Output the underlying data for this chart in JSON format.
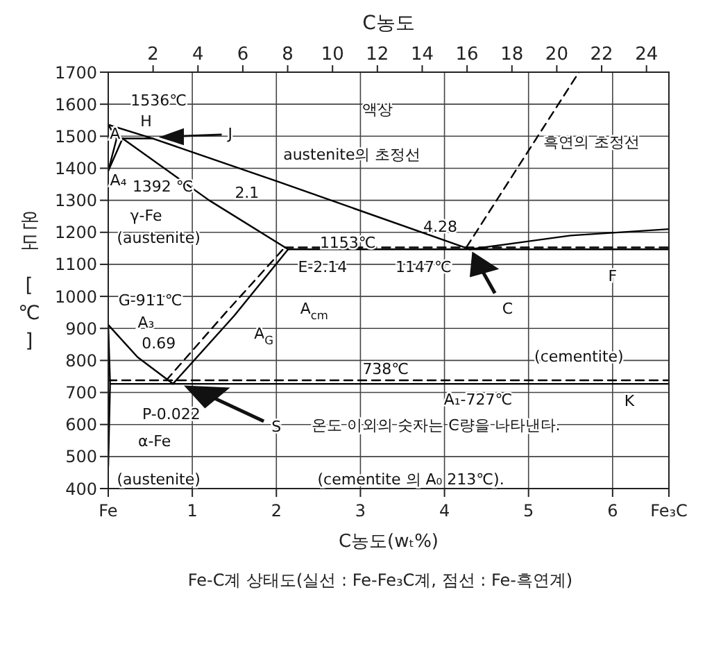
{
  "chart_data": {
    "type": "line",
    "x2label": "C농도",
    "xlabel": "C농도(wₜ%)",
    "ylabel": "온도 [℃]",
    "xlim": [
      0,
      6.67
    ],
    "xticks": [
      {
        "value": 0,
        "label": "Fe"
      },
      1,
      2,
      3,
      4,
      5,
      6,
      {
        "value": 6.67,
        "label": "Fe₃C"
      }
    ],
    "x2lim": [
      0,
      25
    ],
    "x2ticks": [
      2,
      4,
      6,
      8,
      10,
      12,
      14,
      16,
      18,
      20,
      22,
      24
    ],
    "ylim": [
      400,
      1700
    ],
    "yticks": [
      400,
      500,
      600,
      700,
      800,
      900,
      1000,
      1100,
      1200,
      1300,
      1400,
      1500,
      1600,
      1700
    ],
    "grid": true,
    "series": [
      {
        "color": "#000000",
        "line_style": "solid",
        "x": [
          0,
          0.53,
          2.0,
          4.3
        ],
        "values": [
          1536,
          1493,
          1360,
          1147
        ]
      },
      {
        "color": "#000000",
        "line_style": "solid",
        "x": [
          0,
          0.1
        ],
        "values": [
          1536,
          1493
        ]
      },
      {
        "color": "#000000",
        "line_style": "solid",
        "x": [
          0.1,
          0.53
        ],
        "values": [
          1493,
          1493
        ]
      },
      {
        "color": "#000000",
        "line_style": "solid",
        "x": [
          0,
          0.1
        ],
        "values": [
          1392,
          1493
        ]
      },
      {
        "color": "#000000",
        "line_style": "solid",
        "x": [
          0,
          0.17
        ],
        "values": [
          1392,
          1493
        ]
      },
      {
        "color": "#000000",
        "line_style": "solid",
        "x": [
          0.17,
          1.2,
          2.14
        ],
        "values": [
          1493,
          1300,
          1147
        ]
      },
      {
        "color": "#000000",
        "line_style": "solid",
        "x": [
          2.14,
          6.67
        ],
        "values": [
          1147,
          1147
        ]
      },
      {
        "color": "#000000",
        "line_style": "solid",
        "x": [
          4.3,
          5.5,
          6.67
        ],
        "values": [
          1147,
          1190,
          1210
        ]
      },
      {
        "color": "#000000",
        "line_style": "dashed",
        "x": [
          4.26,
          5.6
        ],
        "values": [
          1153,
          1700
        ]
      },
      {
        "color": "#000000",
        "line_style": "dashed",
        "x": [
          2.1,
          6.67
        ],
        "values": [
          1153,
          1153
        ]
      },
      {
        "color": "#000000",
        "line_style": "solid",
        "x": [
          0,
          0.35,
          0.77
        ],
        "values": [
          911,
          810,
          727
        ]
      },
      {
        "color": "#000000",
        "line_style": "solid",
        "x": [
          0.77,
          1.5,
          2.14
        ],
        "values": [
          727,
          940,
          1147
        ]
      },
      {
        "color": "#000000",
        "line_style": "dashed",
        "x": [
          0.69,
          1.4,
          2.1
        ],
        "values": [
          738,
          950,
          1153
        ]
      },
      {
        "color": "#000000",
        "line_style": "solid",
        "x": [
          0.022,
          6.67
        ],
        "values": [
          727,
          727
        ]
      },
      {
        "color": "#000000",
        "line_style": "dashed",
        "x": [
          0,
          6.67
        ],
        "values": [
          738,
          738
        ]
      },
      {
        "color": "#000000",
        "line_style": "solid",
        "x": [
          0,
          0.022,
          0
        ],
        "values": [
          911,
          727,
          470
        ]
      }
    ],
    "annotations": [
      "1536℃",
      {
        "text": "A",
        "x": 0.08,
        "y": 1505
      },
      "H",
      "J",
      "A₄",
      "1392 ℃",
      "γ-Fe",
      "(austenite)",
      "액상",
      "austenite의 초정선",
      "흑연의 초정선",
      "2.1",
      "4.28",
      {
        "text": "1153℃",
        "x": 2.85,
        "y": 1165
      },
      "1147℃",
      "E-2.14",
      "C",
      "F",
      "G-911℃",
      "A₃",
      "A$_{G}$",
      "A$_{cm}$",
      "0.69",
      "(cementite)",
      "738℃",
      "A₁-727℃",
      "K",
      "P-0.022",
      "S",
      "α-Fe",
      "온도 이외의 숫자는 C량을 나타낸다.",
      "(austenite)",
      "(cementite 의 A₀ 213℃).",
      "Fe-C계 상태도(실선 : Fe-Fe₃C계, 점선 : Fe-흑연계)"
    ]
  }
}
